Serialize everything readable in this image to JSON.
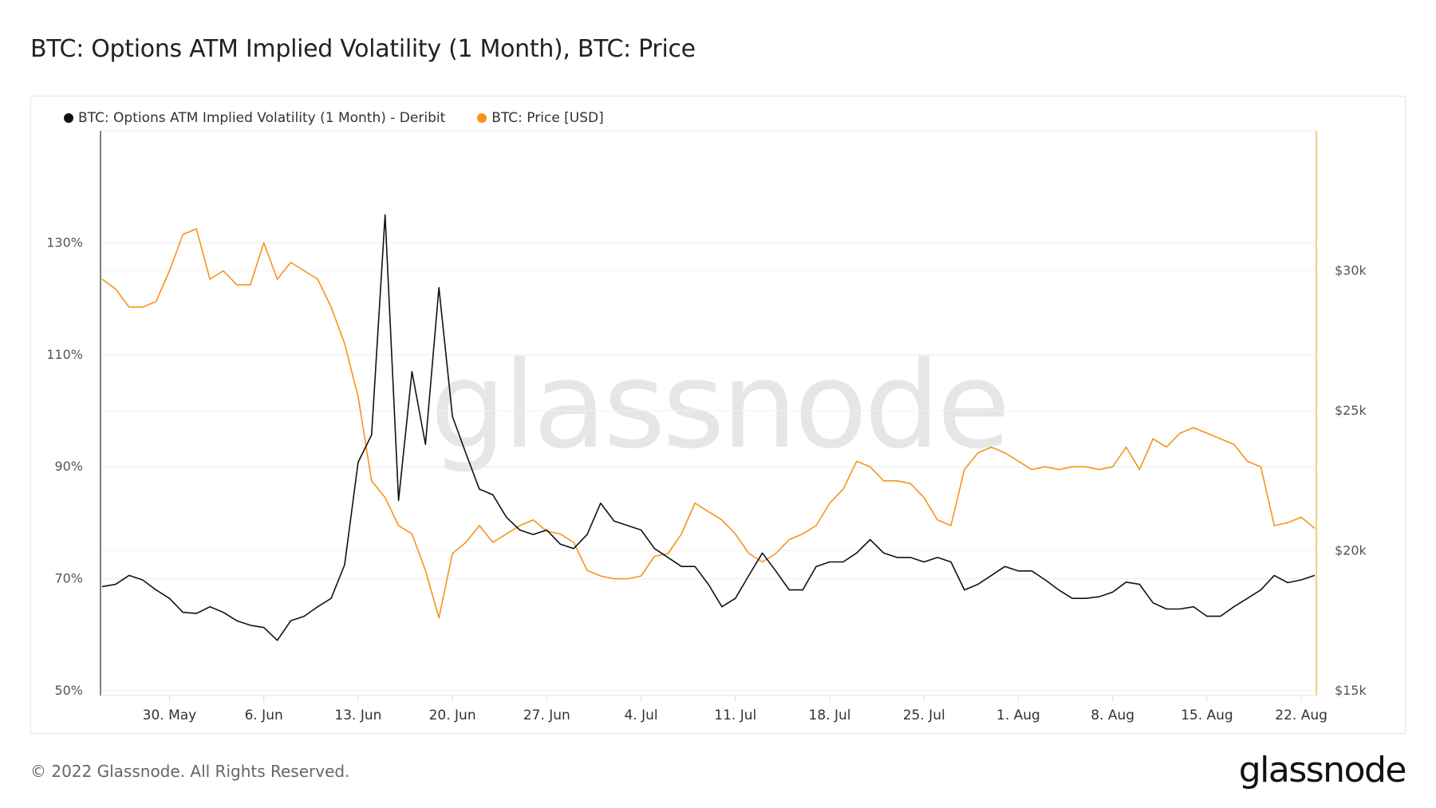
{
  "page": {
    "title": "BTC: Options ATM Implied Volatility (1 Month), BTC: Price",
    "footer_copyright": "© 2022 Glassnode. All Rights Reserved.",
    "footer_logo": "glassnode",
    "watermark": "glassnode"
  },
  "chart_data": {
    "type": "line",
    "title": "BTC: Options ATM Implied Volatility (1 Month), BTC: Price",
    "legend_position": "top-left",
    "grid": true,
    "x": [
      "2022-05-25",
      "2022-05-26",
      "2022-05-27",
      "2022-05-28",
      "2022-05-29",
      "2022-05-30",
      "2022-05-31",
      "2022-06-01",
      "2022-06-02",
      "2022-06-03",
      "2022-06-04",
      "2022-06-05",
      "2022-06-06",
      "2022-06-07",
      "2022-06-08",
      "2022-06-09",
      "2022-06-10",
      "2022-06-11",
      "2022-06-12",
      "2022-06-13",
      "2022-06-14",
      "2022-06-15",
      "2022-06-16",
      "2022-06-17",
      "2022-06-18",
      "2022-06-19",
      "2022-06-20",
      "2022-06-21",
      "2022-06-22",
      "2022-06-23",
      "2022-06-24",
      "2022-06-25",
      "2022-06-26",
      "2022-06-27",
      "2022-06-28",
      "2022-06-29",
      "2022-06-30",
      "2022-07-01",
      "2022-07-02",
      "2022-07-03",
      "2022-07-04",
      "2022-07-05",
      "2022-07-06",
      "2022-07-07",
      "2022-07-08",
      "2022-07-09",
      "2022-07-10",
      "2022-07-11",
      "2022-07-12",
      "2022-07-13",
      "2022-07-14",
      "2022-07-15",
      "2022-07-16",
      "2022-07-17",
      "2022-07-18",
      "2022-07-19",
      "2022-07-20",
      "2022-07-21",
      "2022-07-22",
      "2022-07-23",
      "2022-07-24",
      "2022-07-25",
      "2022-07-26",
      "2022-07-27",
      "2022-07-28",
      "2022-07-29",
      "2022-07-30",
      "2022-07-31",
      "2022-08-01",
      "2022-08-02",
      "2022-08-03",
      "2022-08-04",
      "2022-08-05",
      "2022-08-06",
      "2022-08-07",
      "2022-08-08",
      "2022-08-09",
      "2022-08-10",
      "2022-08-11",
      "2022-08-12",
      "2022-08-13",
      "2022-08-14",
      "2022-08-15",
      "2022-08-16",
      "2022-08-17",
      "2022-08-18",
      "2022-08-19",
      "2022-08-20",
      "2022-08-21",
      "2022-08-22",
      "2022-08-23"
    ],
    "x_range": [
      "2022-05-25",
      "2022-08-23"
    ],
    "x_ticks": [
      "30. May",
      "6. Jun",
      "13. Jun",
      "20. Jun",
      "27. Jun",
      "4. Jul",
      "11. Jul",
      "18. Jul",
      "25. Jul",
      "1. Aug",
      "8. Aug",
      "15. Aug",
      "22. Aug"
    ],
    "x_tick_dates": [
      "2022-05-30",
      "2022-06-06",
      "2022-06-13",
      "2022-06-20",
      "2022-06-27",
      "2022-07-04",
      "2022-07-11",
      "2022-07-18",
      "2022-07-25",
      "2022-08-01",
      "2022-08-08",
      "2022-08-15",
      "2022-08-22"
    ],
    "y_left": {
      "ticks": [
        50,
        70,
        90,
        110,
        130
      ],
      "tick_labels": [
        "50%",
        "70%",
        "90%",
        "110%",
        "130%"
      ],
      "ylim": [
        50,
        150
      ]
    },
    "y_right": {
      "ticks": [
        15,
        20,
        25,
        30
      ],
      "tick_labels": [
        "$15k",
        "$20k",
        "$25k",
        "$30k"
      ],
      "ylim": [
        15,
        35
      ],
      "unit": "thousand USD"
    },
    "series": [
      {
        "name": "BTC: Options ATM Implied Volatility (1 Month) - Deribit",
        "axis": "left",
        "color": "#111111",
        "values": [
          68.6,
          69,
          70.6,
          69.8,
          68,
          66.5,
          64,
          63.8,
          65,
          64,
          62.5,
          61.7,
          61.3,
          59,
          62.5,
          63.3,
          65,
          66.5,
          72.5,
          90.8,
          95.7,
          135,
          84,
          107,
          94,
          122,
          99,
          92.4,
          86,
          85,
          81,
          78.7,
          77.9,
          78.7,
          76.2,
          75.4,
          77.9,
          83.5,
          80.3,
          79.5,
          78.7,
          75.4,
          73.8,
          72.2,
          72.2,
          69,
          65,
          66.5,
          70.6,
          74.6,
          71.4,
          68,
          68,
          72.2,
          73,
          73,
          74.6,
          77,
          74.6,
          73.8,
          73.8,
          73,
          73.8,
          73,
          68,
          69,
          70.6,
          72.2,
          71.4,
          71.4,
          69.8,
          68,
          66.5,
          66.5,
          66.8,
          67.6,
          69.4,
          69,
          65.7,
          64.6,
          64.6,
          65,
          63.3,
          63.3,
          65,
          66.5,
          68,
          70.6,
          69.3,
          69.8,
          70.6
        ]
      },
      {
        "name": "BTC: Price [USD]",
        "axis": "right",
        "color": "#f7931a",
        "values": [
          29.7,
          29.35,
          28.7,
          28.7,
          28.9,
          30.0,
          31.3,
          31.5,
          29.7,
          30.0,
          29.5,
          29.5,
          31.0,
          29.7,
          30.3,
          30.0,
          29.7,
          28.7,
          27.4,
          25.5,
          22.5,
          21.9,
          20.9,
          20.6,
          19.3,
          17.6,
          19.9,
          20.3,
          20.9,
          20.3,
          20.6,
          20.9,
          21.1,
          20.7,
          20.6,
          20.3,
          19.3,
          19.1,
          19.0,
          19.0,
          19.1,
          19.8,
          19.9,
          20.6,
          21.7,
          21.4,
          21.1,
          20.6,
          19.9,
          19.6,
          19.9,
          20.4,
          20.6,
          20.9,
          21.7,
          22.2,
          23.2,
          23.0,
          22.5,
          22.5,
          22.4,
          21.9,
          21.1,
          20.9,
          22.9,
          23.5,
          23.7,
          23.5,
          23.2,
          22.9,
          23.0,
          22.9,
          23.0,
          23.0,
          22.9,
          23.0,
          23.7,
          22.9,
          24.0,
          23.7,
          24.2,
          24.4,
          24.2,
          24.0,
          23.8,
          23.2,
          23.0,
          20.9,
          21.0,
          21.2,
          20.8
        ]
      }
    ]
  }
}
